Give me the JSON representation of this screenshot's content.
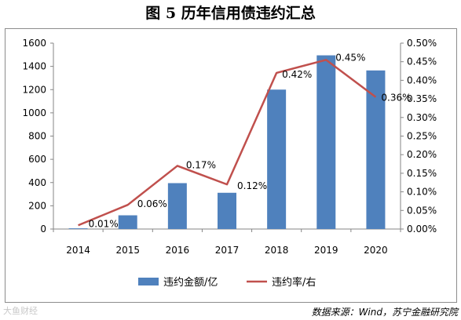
{
  "page": {
    "title": "图 5  历年信用债违约汇总",
    "source": "数据来源：Wind，苏宁金融研究院",
    "watermark": "大鱼财经"
  },
  "chart_data": {
    "type": "bar+line",
    "categories": [
      "2014",
      "2015",
      "2016",
      "2017",
      "2018",
      "2019",
      "2020"
    ],
    "series": [
      {
        "name": "违约金额/亿",
        "type": "bar",
        "axis": "left",
        "color": "#4f81bd",
        "values": [
          6,
          118,
          395,
          312,
          1200,
          1495,
          1365
        ]
      },
      {
        "name": "违约率/右",
        "type": "line",
        "axis": "right",
        "color": "#c0504d",
        "values": [
          0.01,
          0.065,
          0.17,
          0.12,
          0.42,
          0.455,
          0.355
        ],
        "data_labels": [
          "0.01%",
          "0.06%",
          "0.17%",
          "0.12%",
          "0.42%",
          "0.45%",
          "0.36%"
        ]
      }
    ],
    "y_left": {
      "ylim": [
        0,
        1600
      ],
      "ticks": [
        "0",
        "200",
        "400",
        "600",
        "800",
        "1000",
        "1200",
        "1400",
        "1600"
      ]
    },
    "y_right": {
      "ylim": [
        0,
        0.5
      ],
      "ticks": [
        "0.00%",
        "0.05%",
        "0.10%",
        "0.15%",
        "0.20%",
        "0.25%",
        "0.30%",
        "0.35%",
        "0.40%",
        "0.45%",
        "0.50%"
      ]
    },
    "grid": false,
    "legend": "bottom"
  }
}
